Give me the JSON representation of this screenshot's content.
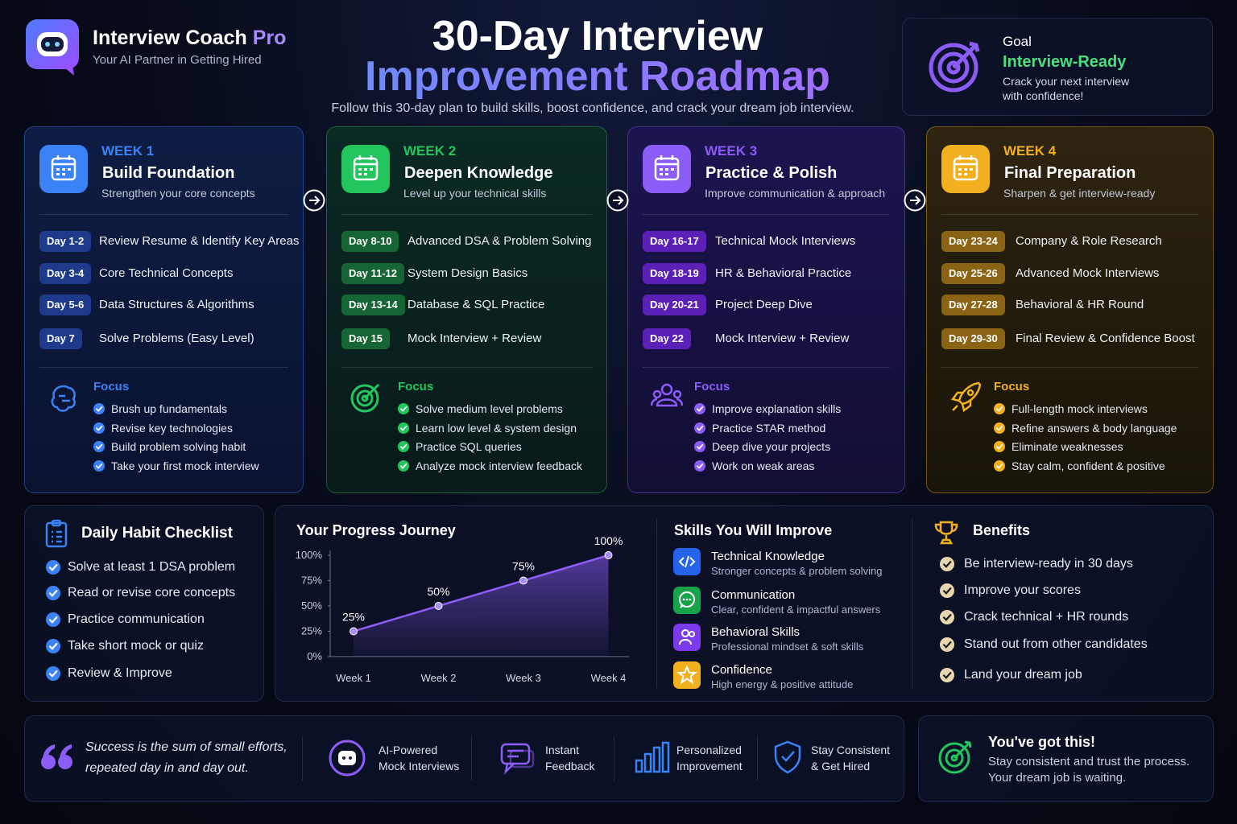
{
  "header": {
    "brand": "Interview Coach",
    "brand_accent": "Pro",
    "tagline": "Your AI Partner in Getting Hired",
    "title_line1": "30-Day Interview",
    "title_line2": "Improvement Roadmap",
    "subtitle": "Follow this 30-day plan to build skills, boost confidence, and crack your dream job interview."
  },
  "goal": {
    "label": "Goal",
    "value": "Interview-Ready",
    "text_line1": "Crack your next interview",
    "text_line2": "with confidence!"
  },
  "weeks": [
    {
      "label": "WEEK 1",
      "title": "Build Foundation",
      "subtitle": "Strengthen your core concepts",
      "days": [
        {
          "day": "Day 1-2",
          "task": "Review Resume & Identify Key Areas"
        },
        {
          "day": "Day 3-4",
          "task": "Core Technical Concepts"
        },
        {
          "day": "Day 5-6",
          "task": "Data Structures & Algorithms"
        },
        {
          "day": "Day 7",
          "task": "Solve Problems (Easy Level)"
        }
      ],
      "focus_title": "Focus",
      "focus": [
        "Brush up fundamentals",
        "Revise key technologies",
        "Build problem solving habit",
        "Take your first mock interview"
      ]
    },
    {
      "label": "WEEK 2",
      "title": "Deepen Knowledge",
      "subtitle": "Level up your technical skills",
      "days": [
        {
          "day": "Day 8-10",
          "task": "Advanced DSA & Problem Solving"
        },
        {
          "day": "Day 11-12",
          "task": "System Design Basics"
        },
        {
          "day": "Day 13-14",
          "task": "Database & SQL Practice"
        },
        {
          "day": "Day 15",
          "task": "Mock Interview + Review"
        }
      ],
      "focus_title": "Focus",
      "focus": [
        "Solve medium level problems",
        "Learn low level & system design",
        "Practice SQL queries",
        "Analyze mock interview feedback"
      ]
    },
    {
      "label": "WEEK 3",
      "title": "Practice & Polish",
      "subtitle": "Improve communication & approach",
      "days": [
        {
          "day": "Day 16-17",
          "task": "Technical Mock Interviews"
        },
        {
          "day": "Day 18-19",
          "task": "HR & Behavioral Practice"
        },
        {
          "day": "Day 20-21",
          "task": "Project Deep Dive"
        },
        {
          "day": "Day 22",
          "task": "Mock Interview + Review"
        }
      ],
      "focus_title": "Focus",
      "focus": [
        "Improve explanation skills",
        "Practice STAR method",
        "Deep dive your projects",
        "Work on weak areas"
      ]
    },
    {
      "label": "WEEK 4",
      "title": "Final Preparation",
      "subtitle": "Sharpen & get interview-ready",
      "days": [
        {
          "day": "Day 23-24",
          "task": "Company & Role Research"
        },
        {
          "day": "Day 25-26",
          "task": "Advanced Mock Interviews"
        },
        {
          "day": "Day 27-28",
          "task": "Behavioral & HR Round"
        },
        {
          "day": "Day 29-30",
          "task": "Final Review & Confidence Boost"
        }
      ],
      "focus_title": "Focus",
      "focus": [
        "Full-length mock interviews",
        "Refine answers & body language",
        "Eliminate weaknesses",
        "Stay calm, confident & positive"
      ]
    }
  ],
  "checklist": {
    "title": "Daily Habit Checklist",
    "items": [
      "Solve at least 1 DSA problem",
      "Read or revise core concepts",
      "Practice communication",
      "Take short mock or quiz",
      "Review & Improve"
    ]
  },
  "chart_data": {
    "type": "line",
    "title": "Your Progress Journey",
    "categories": [
      "Week 1",
      "Week 2",
      "Week 3",
      "Week 4"
    ],
    "values": [
      25,
      50,
      75,
      100
    ],
    "value_labels": [
      "25%",
      "50%",
      "75%",
      "100%"
    ],
    "color": "#8b5cf6",
    "ylim": [
      0,
      100
    ],
    "yticks": [
      {
        "value": 0,
        "label": "0%"
      },
      {
        "value": 25,
        "label": "25%"
      },
      {
        "value": 50,
        "label": "50%"
      },
      {
        "value": 75,
        "label": "75%"
      },
      {
        "value": 100,
        "label": "100%"
      }
    ],
    "grid": false
  },
  "skills": {
    "title": "Skills You Will Improve",
    "items": [
      {
        "name": "Technical Knowledge",
        "desc": "Stronger concepts & problem solving"
      },
      {
        "name": "Communication",
        "desc": "Clear, confident & impactful answers"
      },
      {
        "name": "Behavioral Skills",
        "desc": "Professional mindset & soft skills"
      },
      {
        "name": "Confidence",
        "desc": "High energy & positive attitude"
      }
    ]
  },
  "benefits": {
    "title": "Benefits",
    "items": [
      "Be interview-ready in 30 days",
      "Improve your scores",
      "Crack technical + HR rounds",
      "Stand out from other candidates",
      "Land your dream job"
    ]
  },
  "footer": {
    "quote_line1": "Success is the sum of small efforts,",
    "quote_line2": "repeated day in and day out.",
    "features": [
      {
        "line1": "AI-Powered",
        "line2": "Mock Interviews"
      },
      {
        "line1": "Instant",
        "line2": "Feedback"
      },
      {
        "line1": "Personalized",
        "line2": "Improvement"
      },
      {
        "line1": "Stay Consistent",
        "line2": "& Get Hired"
      }
    ],
    "cta": {
      "title": "You've got this!",
      "line1": "Stay consistent and trust the process.",
      "line2": "Your dream job is waiting."
    }
  }
}
